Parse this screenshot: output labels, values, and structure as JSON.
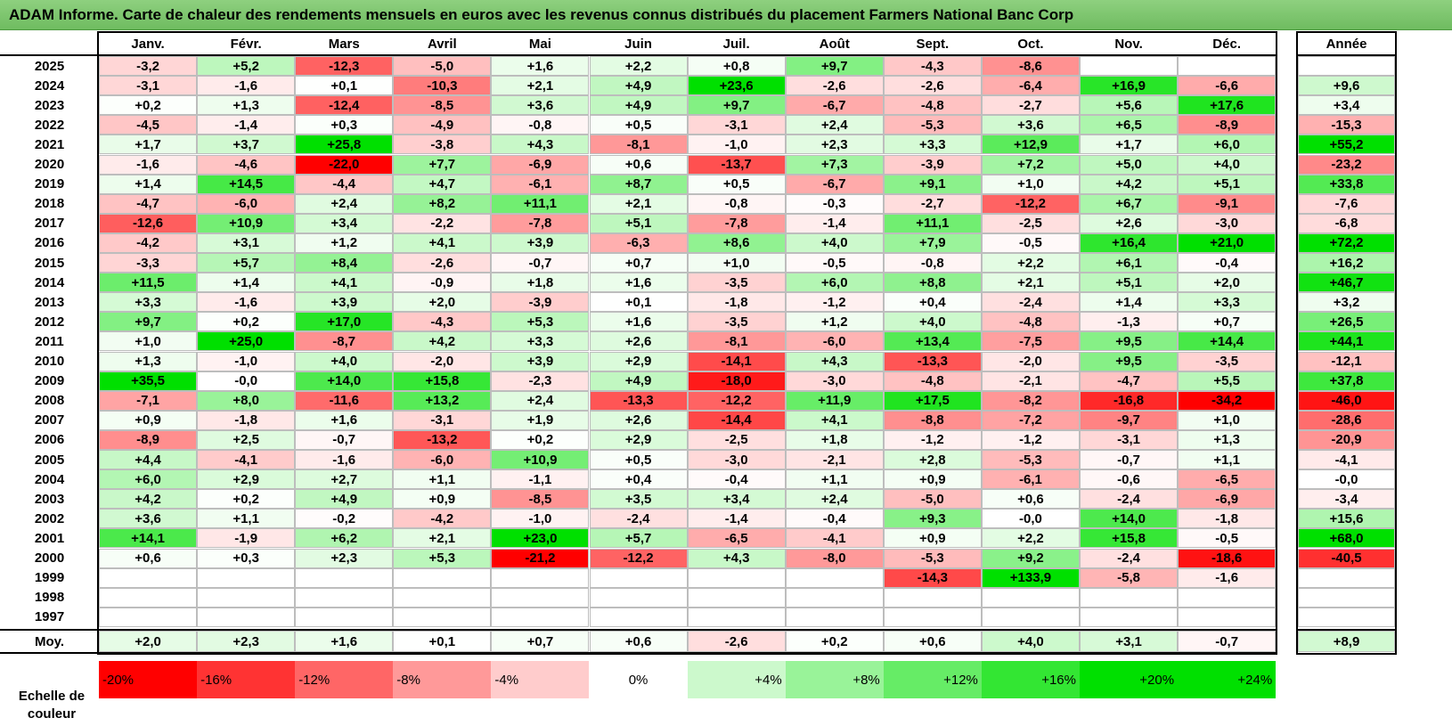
{
  "title": "ADAM Informe. Carte de chaleur des rendements mensuels en euros avec les revenus connus distribués du placement Farmers National Banc Corp",
  "colors": {
    "negative": "#ff0000",
    "neutral": "#ffffff",
    "positive": "#00e000"
  },
  "chart_data": {
    "type": "heatmap",
    "title": "ADAM Informe. Carte de chaleur des rendements mensuels en euros avec les revenus connus distribués du placement Farmers National Banc Corp",
    "columns": [
      "Janv.",
      "Févr.",
      "Mars",
      "Avril",
      "Mai",
      "Juin",
      "Juil.",
      "Août",
      "Sept.",
      "Oct.",
      "Nov.",
      "Déc."
    ],
    "year_column": "Année",
    "rows": [
      {
        "year": "2025",
        "values": [
          "-3,2",
          "+5,2",
          "-12,3",
          "-5,0",
          "+1,6",
          "+2,2",
          "+0,8",
          "+9,7",
          "-4,3",
          "-8,6",
          "",
          ""
        ],
        "annual": ""
      },
      {
        "year": "2024",
        "values": [
          "-3,1",
          "-1,6",
          "+0,1",
          "-10,3",
          "+2,1",
          "+4,9",
          "+23,6",
          "-2,6",
          "-2,6",
          "-6,4",
          "+16,9",
          "-6,6"
        ],
        "annual": "+9,6"
      },
      {
        "year": "2023",
        "values": [
          "+0,2",
          "+1,3",
          "-12,4",
          "-8,5",
          "+3,6",
          "+4,9",
          "+9,7",
          "-6,7",
          "-4,8",
          "-2,7",
          "+5,6",
          "+17,6"
        ],
        "annual": "+3,4"
      },
      {
        "year": "2022",
        "values": [
          "-4,5",
          "-1,4",
          "+0,3",
          "-4,9",
          "-0,8",
          "+0,5",
          "-3,1",
          "+2,4",
          "-5,3",
          "+3,6",
          "+6,5",
          "-8,9"
        ],
        "annual": "-15,3"
      },
      {
        "year": "2021",
        "values": [
          "+1,7",
          "+3,7",
          "+25,8",
          "-3,8",
          "+4,3",
          "-8,1",
          "-1,0",
          "+2,3",
          "+3,3",
          "+12,9",
          "+1,7",
          "+6,0"
        ],
        "annual": "+55,2"
      },
      {
        "year": "2020",
        "values": [
          "-1,6",
          "-4,6",
          "-22,0",
          "+7,7",
          "-6,9",
          "+0,6",
          "-13,7",
          "+7,3",
          "-3,9",
          "+7,2",
          "+5,0",
          "+4,0"
        ],
        "annual": "-23,2"
      },
      {
        "year": "2019",
        "values": [
          "+1,4",
          "+14,5",
          "-4,4",
          "+4,7",
          "-6,1",
          "+8,7",
          "+0,5",
          "-6,7",
          "+9,1",
          "+1,0",
          "+4,2",
          "+5,1"
        ],
        "annual": "+33,8"
      },
      {
        "year": "2018",
        "values": [
          "-4,7",
          "-6,0",
          "+2,4",
          "+8,2",
          "+11,1",
          "+2,1",
          "-0,8",
          "-0,3",
          "-2,7",
          "-12,2",
          "+6,7",
          "-9,1"
        ],
        "annual": "-7,6"
      },
      {
        "year": "2017",
        "values": [
          "-12,6",
          "+10,9",
          "+3,4",
          "-2,2",
          "-7,8",
          "+5,1",
          "-7,8",
          "-1,4",
          "+11,1",
          "-2,5",
          "+2,6",
          "-3,0"
        ],
        "annual": "-6,8"
      },
      {
        "year": "2016",
        "values": [
          "-4,2",
          "+3,1",
          "+1,2",
          "+4,1",
          "+3,9",
          "-6,3",
          "+8,6",
          "+4,0",
          "+7,9",
          "-0,5",
          "+16,4",
          "+21,0"
        ],
        "annual": "+72,2"
      },
      {
        "year": "2015",
        "values": [
          "-3,3",
          "+5,7",
          "+8,4",
          "-2,6",
          "-0,7",
          "+0,7",
          "+1,0",
          "-0,5",
          "-0,8",
          "+2,2",
          "+6,1",
          "-0,4"
        ],
        "annual": "+16,2"
      },
      {
        "year": "2014",
        "values": [
          "+11,5",
          "+1,4",
          "+4,1",
          "-0,9",
          "+1,8",
          "+1,6",
          "-3,5",
          "+6,0",
          "+8,8",
          "+2,1",
          "+5,1",
          "+2,0"
        ],
        "annual": "+46,7"
      },
      {
        "year": "2013",
        "values": [
          "+3,3",
          "-1,6",
          "+3,9",
          "+2,0",
          "-3,9",
          "+0,1",
          "-1,8",
          "-1,2",
          "+0,4",
          "-2,4",
          "+1,4",
          "+3,3"
        ],
        "annual": "+3,2"
      },
      {
        "year": "2012",
        "values": [
          "+9,7",
          "+0,2",
          "+17,0",
          "-4,3",
          "+5,3",
          "+1,6",
          "-3,5",
          "+1,2",
          "+4,0",
          "-4,8",
          "-1,3",
          "+0,7"
        ],
        "annual": "+26,5"
      },
      {
        "year": "2011",
        "values": [
          "+1,0",
          "+25,0",
          "-8,7",
          "+4,2",
          "+3,3",
          "+2,6",
          "-8,1",
          "-6,0",
          "+13,4",
          "-7,5",
          "+9,5",
          "+14,4"
        ],
        "annual": "+44,1"
      },
      {
        "year": "2010",
        "values": [
          "+1,3",
          "-1,0",
          "+4,0",
          "-2,0",
          "+3,9",
          "+2,9",
          "-14,1",
          "+4,3",
          "-13,3",
          "-2,0",
          "+9,5",
          "-3,5"
        ],
        "annual": "-12,1"
      },
      {
        "year": "2009",
        "values": [
          "+35,5",
          "-0,0",
          "+14,0",
          "+15,8",
          "-2,3",
          "+4,9",
          "-18,0",
          "-3,0",
          "-4,8",
          "-2,1",
          "-4,7",
          "+5,5"
        ],
        "annual": "+37,8"
      },
      {
        "year": "2008",
        "values": [
          "-7,1",
          "+8,0",
          "-11,6",
          "+13,2",
          "+2,4",
          "-13,3",
          "-12,2",
          "+11,9",
          "+17,5",
          "-8,2",
          "-16,8",
          "-34,2"
        ],
        "annual": "-46,0"
      },
      {
        "year": "2007",
        "values": [
          "+0,9",
          "-1,8",
          "+1,6",
          "-3,1",
          "+1,9",
          "+2,6",
          "-14,4",
          "+4,1",
          "-8,8",
          "-7,2",
          "-9,7",
          "+1,0"
        ],
        "annual": "-28,6"
      },
      {
        "year": "2006",
        "values": [
          "-8,9",
          "+2,5",
          "-0,7",
          "-13,2",
          "+0,2",
          "+2,9",
          "-2,5",
          "+1,8",
          "-1,2",
          "-1,2",
          "-3,1",
          "+1,3"
        ],
        "annual": "-20,9"
      },
      {
        "year": "2005",
        "values": [
          "+4,4",
          "-4,1",
          "-1,6",
          "-6,0",
          "+10,9",
          "+0,5",
          "-3,0",
          "-2,1",
          "+2,8",
          "-5,3",
          "-0,7",
          "+1,1"
        ],
        "annual": "-4,1"
      },
      {
        "year": "2004",
        "values": [
          "+6,0",
          "+2,9",
          "+2,7",
          "+1,1",
          "-1,1",
          "+0,4",
          "-0,4",
          "+1,1",
          "+0,9",
          "-6,1",
          "-0,6",
          "-6,5"
        ],
        "annual": "-0,0"
      },
      {
        "year": "2003",
        "values": [
          "+4,2",
          "+0,2",
          "+4,9",
          "+0,9",
          "-8,5",
          "+3,5",
          "+3,4",
          "+2,4",
          "-5,0",
          "+0,6",
          "-2,4",
          "-6,9"
        ],
        "annual": "-3,4"
      },
      {
        "year": "2002",
        "values": [
          "+3,6",
          "+1,1",
          "-0,2",
          "-4,2",
          "-1,0",
          "-2,4",
          "-1,4",
          "-0,4",
          "+9,3",
          "-0,0",
          "+14,0",
          "-1,8"
        ],
        "annual": "+15,6"
      },
      {
        "year": "2001",
        "values": [
          "+14,1",
          "-1,9",
          "+6,2",
          "+2,1",
          "+23,0",
          "+5,7",
          "-6,5",
          "-4,1",
          "+0,9",
          "+2,2",
          "+15,8",
          "-0,5"
        ],
        "annual": "+68,0"
      },
      {
        "year": "2000",
        "values": [
          "+0,6",
          "+0,3",
          "+2,3",
          "+5,3",
          "-21,2",
          "-12,2",
          "+4,3",
          "-8,0",
          "-5,3",
          "+9,2",
          "-2,4",
          "-18,6"
        ],
        "annual": "-40,5"
      },
      {
        "year": "1999",
        "values": [
          "",
          "",
          "",
          "",
          "",
          "",
          "",
          "",
          "-14,3",
          "+133,9",
          "-5,8",
          "-1,6"
        ],
        "annual": ""
      },
      {
        "year": "1998",
        "values": [
          "",
          "",
          "",
          "",
          "",
          "",
          "",
          "",
          "",
          "",
          "",
          ""
        ],
        "annual": ""
      },
      {
        "year": "1997",
        "values": [
          "",
          "",
          "",
          "",
          "",
          "",
          "",
          "",
          "",
          "",
          "",
          ""
        ],
        "annual": ""
      }
    ],
    "average": {
      "label": "Moy.",
      "values": [
        "+2,0",
        "+2,3",
        "+1,6",
        "+0,1",
        "+0,7",
        "+0,6",
        "-2,6",
        "+0,2",
        "+0,6",
        "+4,0",
        "+3,1",
        "-0,7"
      ],
      "annual": "+8,9"
    },
    "color_scale": {
      "label": "Echelle de couleur",
      "stops": [
        "-20%",
        "-16%",
        "-12%",
        "-8%",
        "-4%",
        "0%",
        "+4%",
        "+8%",
        "+12%",
        "+16%",
        "+20%",
        "+24%"
      ],
      "stop_values": [
        -20,
        -16,
        -12,
        -8,
        -4,
        0,
        4,
        8,
        12,
        16,
        20,
        24
      ]
    }
  }
}
